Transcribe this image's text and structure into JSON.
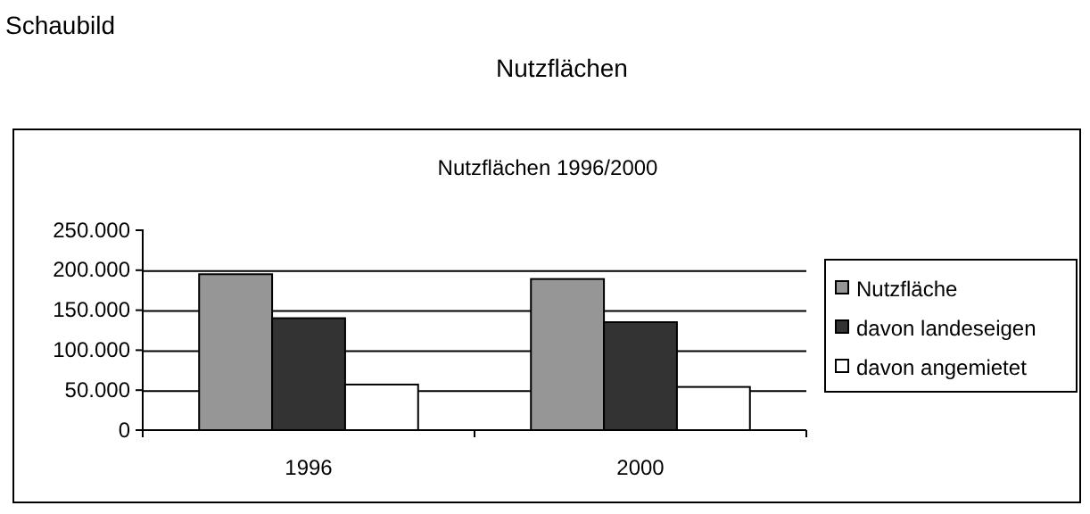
{
  "chart_data": {
    "type": "bar",
    "title": "Nutzflächen 1996/2000",
    "annotations": [
      "Schaubild",
      "Nutzflächen"
    ],
    "categories": [
      "1996",
      "2000"
    ],
    "series": [
      {
        "name": "Nutzfläche",
        "color": "#969696",
        "values": [
          195000,
          189000
        ]
      },
      {
        "name": "davon landeseigen",
        "color": "#333333",
        "values": [
          140000,
          135000
        ]
      },
      {
        "name": "davon angemietet",
        "color": "#ffffff",
        "values": [
          57000,
          54000
        ]
      }
    ],
    "ylim": [
      0,
      250000
    ],
    "yticks": [
      {
        "value": 0,
        "label": "0"
      },
      {
        "value": 50000,
        "label": "50.000"
      },
      {
        "value": 100000,
        "label": "100.000"
      },
      {
        "value": 150000,
        "label": "150.000"
      },
      {
        "value": 200000,
        "label": "200.000"
      },
      {
        "value": 250000,
        "label": "250.000"
      }
    ],
    "grid": "y",
    "legend": "right"
  }
}
